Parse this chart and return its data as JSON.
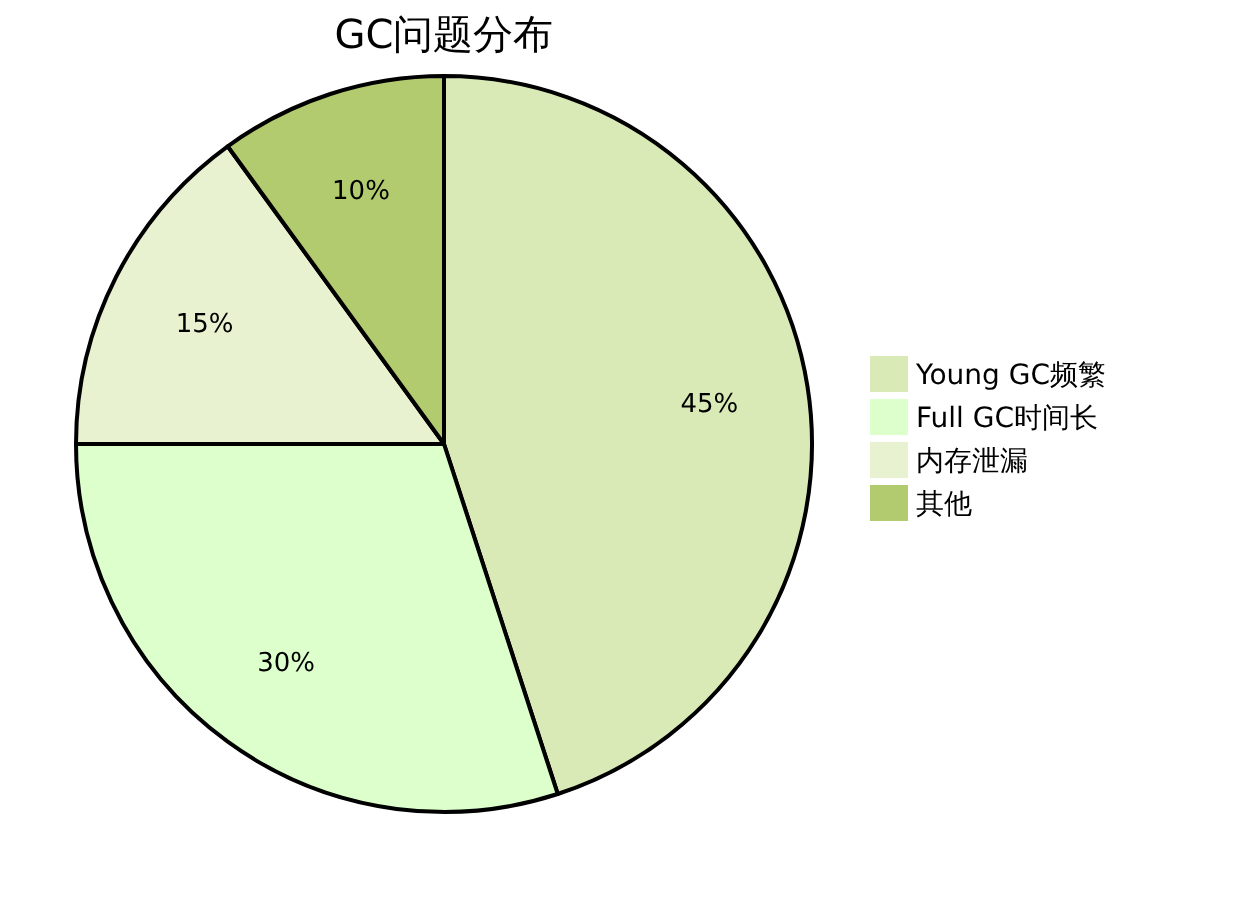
{
  "chart_data": {
    "type": "pie",
    "title": "GC问题分布",
    "categories": [
      "Young GC频繁",
      "Full GC时间长",
      "内存泄漏",
      "其他"
    ],
    "values": [
      45,
      30,
      15,
      10
    ],
    "value_labels": [
      "45%",
      "30%",
      "15%",
      "10%"
    ],
    "colors": [
      "#d9eab6",
      "#dcffcc",
      "#e8f1d0",
      "#b1cb6e"
    ],
    "legend": "right"
  }
}
